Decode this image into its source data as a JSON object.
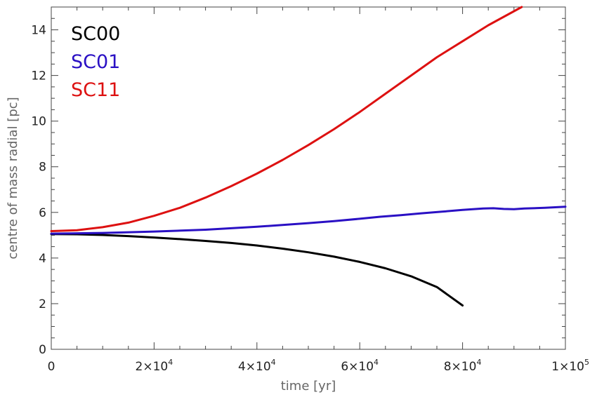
{
  "chart_data": {
    "type": "line",
    "title": "",
    "xlabel": "time [yr]",
    "ylabel": "centre of mass radial [pc]",
    "xlim": [
      0,
      100000
    ],
    "ylim": [
      0,
      15
    ],
    "x_ticks": [
      {
        "value": 0,
        "base": "0",
        "exp": ""
      },
      {
        "value": 20000,
        "base": "2×10",
        "exp": "4"
      },
      {
        "value": 40000,
        "base": "4×10",
        "exp": "4"
      },
      {
        "value": 60000,
        "base": "6×10",
        "exp": "4"
      },
      {
        "value": 80000,
        "base": "8×10",
        "exp": "4"
      },
      {
        "value": 100000,
        "base": "1×10",
        "exp": "5"
      }
    ],
    "y_ticks": [
      0,
      2,
      4,
      6,
      8,
      10,
      12,
      14
    ],
    "grid": false,
    "legend_position": "top-left",
    "series": [
      {
        "name": "SC00",
        "color": "#000000",
        "x": [
          0,
          5000,
          10000,
          15000,
          20000,
          25000,
          30000,
          35000,
          40000,
          45000,
          50000,
          55000,
          60000,
          65000,
          70000,
          75000,
          80000
        ],
        "y": [
          5.05,
          5.04,
          5.01,
          4.96,
          4.9,
          4.83,
          4.75,
          4.66,
          4.55,
          4.41,
          4.25,
          4.06,
          3.83,
          3.55,
          3.2,
          2.73,
          1.92
        ]
      },
      {
        "name": "SC01",
        "color": "#2a10c4",
        "x": [
          0,
          10000,
          20000,
          30000,
          40000,
          50000,
          55000,
          60000,
          64000,
          68000,
          72000,
          76000,
          80000,
          84000,
          86000,
          88000,
          90000,
          92000,
          96000,
          100000
        ],
        "y": [
          5.07,
          5.1,
          5.16,
          5.24,
          5.37,
          5.53,
          5.62,
          5.72,
          5.81,
          5.88,
          5.96,
          6.03,
          6.11,
          6.17,
          6.18,
          6.15,
          6.14,
          6.17,
          6.2,
          6.25
        ]
      },
      {
        "name": "SC11",
        "color": "#dd1111",
        "x": [
          0,
          5000,
          10000,
          15000,
          20000,
          25000,
          30000,
          35000,
          40000,
          45000,
          50000,
          55000,
          60000,
          65000,
          70000,
          75000,
          80000,
          85000,
          91500
        ],
        "y": [
          5.18,
          5.22,
          5.35,
          5.55,
          5.85,
          6.2,
          6.65,
          7.15,
          7.7,
          8.3,
          8.95,
          9.65,
          10.4,
          11.2,
          12.0,
          12.8,
          13.5,
          14.2,
          15.0
        ]
      }
    ]
  }
}
